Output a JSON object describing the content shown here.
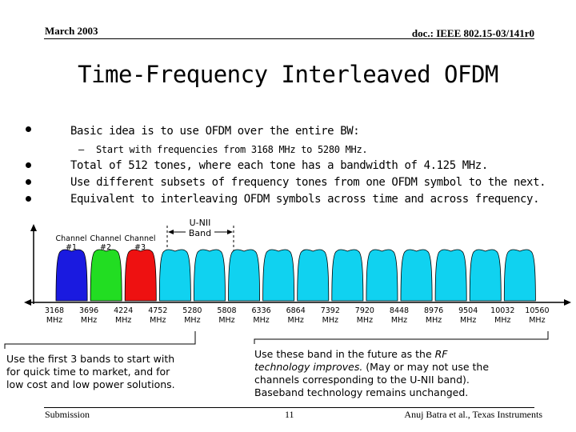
{
  "header": {
    "date": "March 2003",
    "doc_id": "doc.: IEEE 802.15-03/141r0"
  },
  "title": "Time-Frequency Interleaved OFDM",
  "bullets": [
    {
      "text": "Basic idea is to use OFDM over the entire BW:"
    },
    {
      "text": "Total of 512 tones, where each tone has a bandwidth of 4.125 MHz."
    },
    {
      "text": "Use different subsets of frequency tones from one OFDM symbol to the next."
    },
    {
      "text": "Equivalent to interleaving OFDM symbols across time and across frequency."
    }
  ],
  "sub_bullet": {
    "dash": "–",
    "text": "Start with frequencies from 3168 MHz to 5280 MHz."
  },
  "figure": {
    "unii_label": [
      "U-NII",
      "Band"
    ],
    "channel_labels": [
      [
        "Channel",
        "#1"
      ],
      [
        "Channel",
        "#2"
      ],
      [
        "Channel",
        "#3"
      ]
    ],
    "freq_ticks": [
      "3168",
      "3696",
      "4224",
      "4752",
      "5280",
      "5808",
      "6336",
      "6864",
      "7392",
      "7920",
      "8448",
      "8976",
      "9504",
      "10032",
      "10560"
    ],
    "unit": "MHz",
    "band_colors": [
      "#1a1ae0",
      "#22dd22",
      "#ee1111",
      "#10d2f0",
      "#10d2f0",
      "#10d2f0",
      "#10d2f0",
      "#10d2f0",
      "#10d2f0",
      "#10d2f0",
      "#10d2f0",
      "#10d2f0",
      "#10d2f0",
      "#10d2f0"
    ]
  },
  "note_left": [
    "Use the first 3 bands to start with",
    "for quick time to market, and for",
    "low cost and low power solutions."
  ],
  "note_right": {
    "line1_pre": "Use these band in the future as the ",
    "line1_ital": "RF",
    "line2": "technology improves.",
    "line2_rest": " (May or may not use the",
    "line3": "channels corresponding to the U-NII band).",
    "line4": "Baseband technology remains unchanged."
  },
  "footer": {
    "left": "Submission",
    "page": "11",
    "right": "Anuj Batra et al., Texas Instruments"
  }
}
